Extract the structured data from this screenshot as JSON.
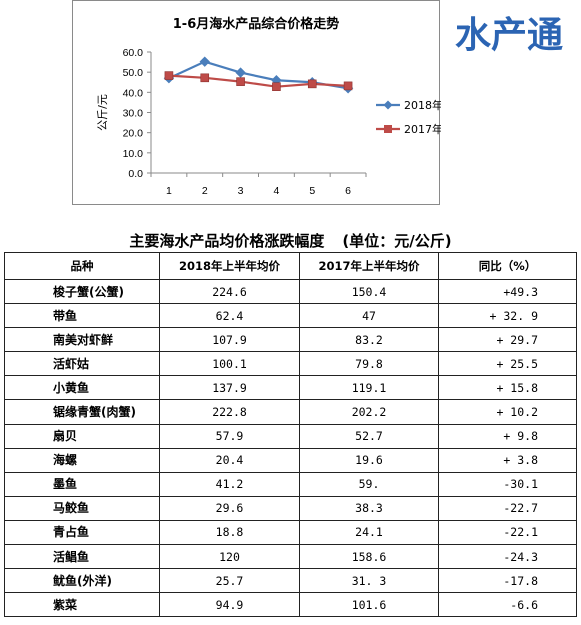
{
  "brand": {
    "logo_text": "水产通"
  },
  "chart_data": {
    "type": "line",
    "title": "1-6月海水产品综合价格走势",
    "ylabel": "公斤/元",
    "xlabel": "",
    "x": [
      1,
      2,
      3,
      4,
      5,
      6
    ],
    "x_tick_labels": [
      "1",
      "2",
      "3",
      "4",
      "5",
      "6"
    ],
    "ylim": [
      0,
      60
    ],
    "y_ticks": [
      0,
      10,
      20,
      30,
      40,
      50,
      60
    ],
    "y_tick_labels": [
      "0.0",
      "10.0",
      "20.0",
      "30.0",
      "40.0",
      "50.0",
      "60.0"
    ],
    "grid": false,
    "legend_position": "right",
    "series": [
      {
        "name": "2018年",
        "values": [
          47.0,
          55.2,
          49.8,
          46.0,
          45.0,
          42.0
        ],
        "color": "#4a7ebb",
        "marker": "diamond"
      },
      {
        "name": "2017年",
        "values": [
          48.3,
          47.2,
          45.3,
          42.8,
          44.2,
          43.2
        ],
        "color": "#be4b48",
        "marker": "square"
      }
    ]
  },
  "table": {
    "title": "主要海水产品均价格涨跌幅度",
    "unit": "(单位：元/公斤)",
    "headers": [
      "品种",
      "2018年上半年均价",
      "2017年上半年均价",
      "同比（%）"
    ],
    "rows": [
      [
        "梭子蟹(公蟹)",
        "224.6",
        "150.4",
        "+49.3"
      ],
      [
        "带鱼",
        "62.4",
        "47",
        "+ 32. 9"
      ],
      [
        "南美对虾鲜",
        "107.9",
        "83.2",
        "+ 29.7"
      ],
      [
        "活虾姑",
        "100.1",
        "79.8",
        "+ 25.5"
      ],
      [
        "小黄鱼",
        "137.9",
        "119.1",
        "+ 15.8"
      ],
      [
        "锯缘青蟹(肉蟹)",
        "222.8",
        "202.2",
        "+ 10.2"
      ],
      [
        "扇贝",
        "57.9",
        "52.7",
        "+ 9.8"
      ],
      [
        "海螺",
        "20.4",
        "19.6",
        "+ 3.8"
      ],
      [
        "墨鱼",
        "41.2",
        "59.",
        "-30.1"
      ],
      [
        "马鲛鱼",
        "29.6",
        "38.3",
        "-22.7"
      ],
      [
        "青占鱼",
        "18.8",
        "24.1",
        "-22.1"
      ],
      [
        "活鲳鱼",
        "120",
        "158.6",
        "-24.3"
      ],
      [
        "鱿鱼(外洋)",
        "25.7",
        "31. 3",
        "-17.8"
      ],
      [
        "紫菜",
        "94.9",
        "101.6",
        "-6.6"
      ]
    ]
  }
}
